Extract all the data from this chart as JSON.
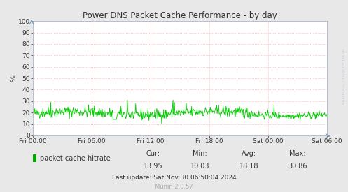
{
  "title": "Power DNS Packet Cache Performance - by day",
  "ylabel": "%",
  "ylim": [
    0,
    100
  ],
  "yticks": [
    0,
    10,
    20,
    30,
    40,
    50,
    60,
    70,
    80,
    90,
    100
  ],
  "xtick_labels": [
    "Fri 00:00",
    "Fri 06:00",
    "Fri 12:00",
    "Fri 18:00",
    "Sat 00:00",
    "Sat 06:00"
  ],
  "line_color": "#00cc00",
  "bg_color": "#e8e8e8",
  "plot_bg_color": "#ffffff",
  "grid_color": "#ff9999",
  "title_color": "#333333",
  "legend_label": "packet cache hitrate",
  "legend_color": "#00aa00",
  "cur": "13.95",
  "min": "10.03",
  "avg": "18.18",
  "max": "30.86",
  "last_update": "Last update: Sat Nov 30 06:50:04 2024",
  "munin_version": "Munin 2.0.57",
  "watermark": "RRDTOOL / TOBI OETIKER",
  "n_points": 600
}
